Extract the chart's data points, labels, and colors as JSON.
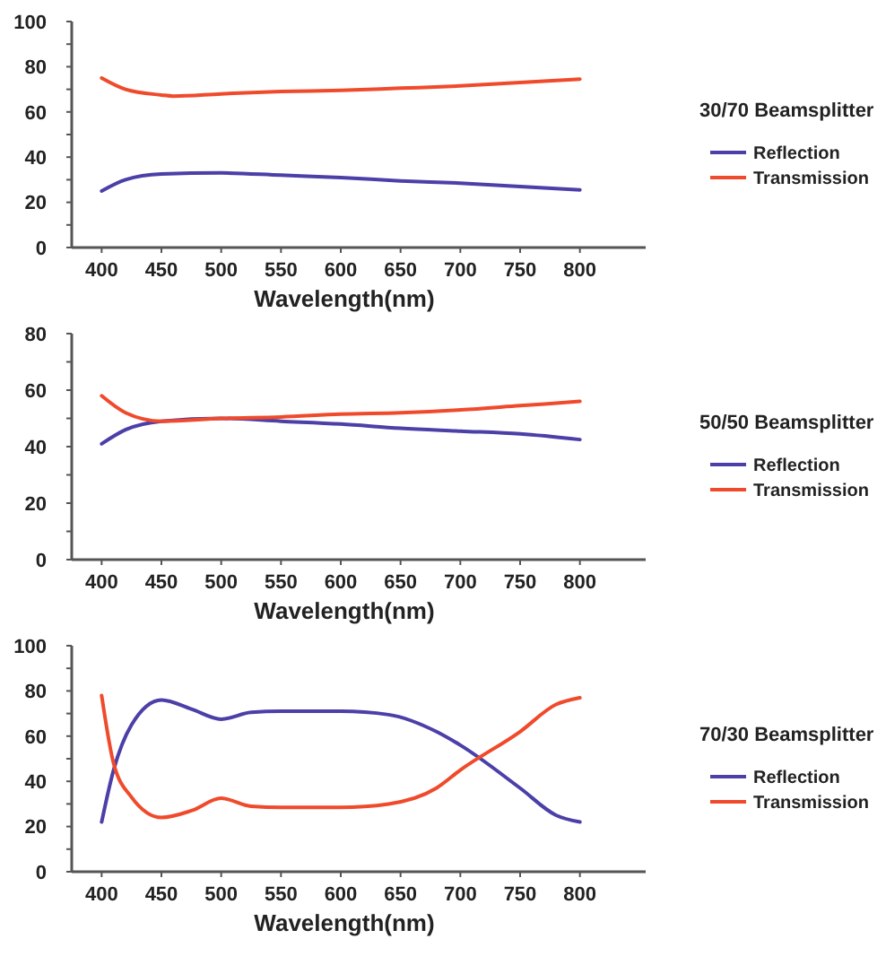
{
  "chart_data": [
    {
      "type": "line",
      "legend_title": "30/70 Beamsplitter",
      "xlabel": "Wavelength(nm)",
      "legend": "right",
      "grid": false,
      "marker": "none",
      "line_style": "solid",
      "xlim": [
        375,
        855
      ],
      "ylim": [
        0,
        100
      ],
      "xticks": [
        400,
        450,
        500,
        550,
        600,
        650,
        700,
        750,
        800
      ],
      "yticks": [
        0,
        {
          "value": 10,
          "label": null
        },
        20,
        {
          "value": 30,
          "label": null
        },
        40,
        {
          "value": 50,
          "label": null
        },
        60,
        {
          "value": 70,
          "label": null
        },
        80,
        {
          "value": 90,
          "label": null
        },
        100
      ],
      "series": [
        {
          "name": "Reflection",
          "color": "#4b3fa8",
          "x": [
            400,
            420,
            450,
            500,
            550,
            600,
            650,
            700,
            750,
            800
          ],
          "values": [
            25,
            30,
            32.5,
            33,
            32,
            31,
            29.5,
            28.5,
            27,
            25.5
          ]
        },
        {
          "name": "Transmission",
          "color": "#f04a2c",
          "x": [
            400,
            420,
            450,
            460,
            500,
            550,
            600,
            650,
            700,
            750,
            800
          ],
          "values": [
            75,
            70,
            67.5,
            67,
            68,
            69,
            69.5,
            70.5,
            71.5,
            73,
            74.5
          ]
        }
      ]
    },
    {
      "type": "line",
      "legend_title": "50/50 Beamsplitter",
      "xlabel": "Wavelength(nm)",
      "legend": "right",
      "grid": false,
      "marker": "none",
      "line_style": "solid",
      "xlim": [
        375,
        855
      ],
      "ylim": [
        0,
        80
      ],
      "xticks": [
        400,
        450,
        500,
        550,
        600,
        650,
        700,
        750,
        800
      ],
      "yticks": [
        0,
        {
          "value": 10,
          "label": null
        },
        20,
        {
          "value": 30,
          "label": null
        },
        40,
        {
          "value": 50,
          "label": null
        },
        60,
        {
          "value": 70,
          "label": null
        },
        80
      ],
      "series": [
        {
          "name": "Reflection",
          "color": "#4b3fa8",
          "x": [
            400,
            420,
            450,
            500,
            550,
            600,
            650,
            700,
            750,
            800
          ],
          "values": [
            41,
            46,
            49,
            50,
            49,
            48,
            46.5,
            45.5,
            44.5,
            42.5
          ]
        },
        {
          "name": "Transmission",
          "color": "#f04a2c",
          "x": [
            400,
            420,
            450,
            500,
            550,
            600,
            650,
            700,
            750,
            800
          ],
          "values": [
            58,
            52,
            49,
            50,
            50.5,
            51.5,
            52,
            53,
            54.5,
            56
          ]
        }
      ]
    },
    {
      "type": "line",
      "legend_title": "70/30 Beamsplitter",
      "xlabel": "Wavelength(nm)",
      "legend": "right",
      "grid": false,
      "marker": "none",
      "line_style": "solid",
      "xlim": [
        375,
        855
      ],
      "ylim": [
        0,
        100
      ],
      "xticks": [
        400,
        450,
        500,
        550,
        600,
        650,
        700,
        750,
        800
      ],
      "yticks": [
        0,
        {
          "value": 10,
          "label": null
        },
        20,
        {
          "value": 30,
          "label": null
        },
        40,
        {
          "value": 50,
          "label": null
        },
        60,
        {
          "value": 70,
          "label": null
        },
        80,
        {
          "value": 90,
          "label": null
        },
        100
      ],
      "series": [
        {
          "name": "Reflection",
          "color": "#4b3fa8",
          "x": [
            400,
            410,
            425,
            450,
            475,
            500,
            525,
            550,
            600,
            640,
            680,
            700,
            750,
            780,
            800
          ],
          "values": [
            22,
            45,
            65,
            76,
            72,
            67.5,
            70.5,
            71,
            71,
            69.5,
            62,
            56,
            37,
            25,
            22
          ]
        },
        {
          "name": "Transmission",
          "color": "#f04a2c",
          "x": [
            400,
            410,
            425,
            450,
            475,
            500,
            525,
            550,
            600,
            640,
            680,
            700,
            750,
            780,
            800
          ],
          "values": [
            78,
            48,
            33,
            24,
            27,
            32.5,
            29,
            28.5,
            28.5,
            30,
            37,
            45,
            62,
            74,
            77
          ]
        }
      ]
    }
  ]
}
